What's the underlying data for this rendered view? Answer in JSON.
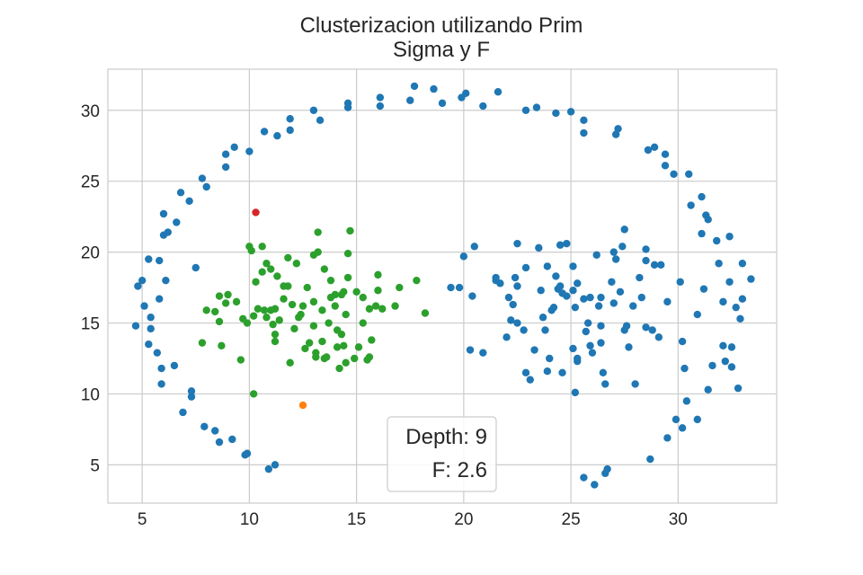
{
  "chart_data": {
    "type": "scatter",
    "title": "Clusterizacion utilizando Prim",
    "subtitle": "Sigma y F",
    "xlabel": "",
    "ylabel": "",
    "xlim": [
      3.4,
      34.6
    ],
    "ylim": [
      2.3,
      32.9
    ],
    "xticks": [
      5,
      10,
      15,
      20,
      25,
      30
    ],
    "yticks": [
      5,
      10,
      15,
      20,
      25,
      30
    ],
    "grid": true,
    "annotation": {
      "lines": [
        "Depth: 9",
        "F: 2.6"
      ],
      "placement": "bottom-center"
    },
    "series": [
      {
        "color": "#1f77b4",
        "points": [
          [
            4.7,
            14.8
          ],
          [
            4.8,
            17.6
          ],
          [
            5.0,
            18.0
          ],
          [
            5.1,
            16.2
          ],
          [
            5.3,
            19.5
          ],
          [
            5.4,
            15.4
          ],
          [
            5.4,
            14.6
          ],
          [
            5.3,
            13.5
          ],
          [
            5.7,
            12.9
          ],
          [
            5.8,
            19.4
          ],
          [
            5.8,
            16.7
          ],
          [
            5.9,
            11.8
          ],
          [
            5.9,
            10.7
          ],
          [
            6.0,
            21.2
          ],
          [
            6.0,
            22.7
          ],
          [
            6.1,
            18.0
          ],
          [
            6.2,
            21.4
          ],
          [
            6.5,
            12.0
          ],
          [
            6.6,
            22.1
          ],
          [
            6.8,
            24.2
          ],
          [
            6.9,
            8.7
          ],
          [
            7.2,
            23.6
          ],
          [
            7.3,
            9.8
          ],
          [
            7.3,
            10.2
          ],
          [
            7.5,
            18.9
          ],
          [
            7.8,
            25.2
          ],
          [
            7.9,
            7.7
          ],
          [
            8.0,
            24.6
          ],
          [
            8.4,
            7.4
          ],
          [
            8.6,
            6.6
          ],
          [
            8.9,
            26.0
          ],
          [
            8.9,
            26.9
          ],
          [
            9.2,
            6.8
          ],
          [
            9.3,
            27.4
          ],
          [
            9.8,
            5.7
          ],
          [
            9.9,
            5.8
          ],
          [
            10.0,
            27.1
          ],
          [
            10.7,
            28.5
          ],
          [
            10.9,
            4.7
          ],
          [
            11.2,
            5.0
          ],
          [
            11.3,
            28.2
          ],
          [
            11.9,
            28.6
          ],
          [
            11.9,
            29.4
          ],
          [
            13.0,
            30.0
          ],
          [
            13.3,
            29.3
          ],
          [
            14.6,
            30.5
          ],
          [
            14.6,
            30.2
          ],
          [
            16.1,
            30.9
          ],
          [
            16.1,
            30.3
          ],
          [
            17.5,
            30.7
          ],
          [
            17.7,
            31.7
          ],
          [
            18.6,
            31.5
          ],
          [
            19.0,
            30.5
          ],
          [
            19.4,
            17.5
          ],
          [
            19.8,
            17.5
          ],
          [
            19.9,
            30.9
          ],
          [
            20.0,
            19.7
          ],
          [
            20.1,
            31.2
          ],
          [
            20.3,
            13.1
          ],
          [
            20.4,
            16.9
          ],
          [
            20.5,
            20.4
          ],
          [
            20.9,
            30.3
          ],
          [
            20.9,
            12.9
          ],
          [
            21.5,
            18.0
          ],
          [
            21.6,
            31.3
          ],
          [
            21.5,
            18.2
          ],
          [
            21.7,
            17.8
          ],
          [
            22.0,
            14.0
          ],
          [
            22.1,
            16.8
          ],
          [
            22.2,
            15.2
          ],
          [
            22.3,
            16.3
          ],
          [
            22.4,
            18.2
          ],
          [
            22.5,
            15.0
          ],
          [
            22.5,
            20.6
          ],
          [
            22.5,
            17.6
          ],
          [
            22.8,
            14.5
          ],
          [
            22.9,
            18.9
          ],
          [
            22.9,
            11.5
          ],
          [
            22.9,
            30.0
          ],
          [
            23.1,
            11.0
          ],
          [
            23.3,
            13.1
          ],
          [
            23.4,
            30.2
          ],
          [
            23.5,
            20.3
          ],
          [
            23.6,
            17.3
          ],
          [
            23.7,
            15.4
          ],
          [
            23.8,
            14.5
          ],
          [
            23.9,
            19.0
          ],
          [
            23.9,
            11.6
          ],
          [
            24.0,
            12.5
          ],
          [
            24.1,
            15.9
          ],
          [
            24.2,
            16.1
          ],
          [
            24.3,
            29.8
          ],
          [
            24.3,
            18.3
          ],
          [
            24.4,
            17.4
          ],
          [
            24.5,
            20.5
          ],
          [
            24.6,
            11.5
          ],
          [
            24.5,
            17.6
          ],
          [
            24.6,
            17.1
          ],
          [
            24.8,
            16.9
          ],
          [
            24.8,
            20.6
          ],
          [
            25.0,
            29.9
          ],
          [
            25.1,
            19.0
          ],
          [
            25.1,
            17.3
          ],
          [
            25.2,
            10.1
          ],
          [
            25.2,
            16.1
          ],
          [
            25.1,
            13.2
          ],
          [
            25.3,
            17.8
          ],
          [
            25.3,
            12.3
          ],
          [
            25.3,
            12.5
          ],
          [
            25.6,
            29.3
          ],
          [
            25.6,
            28.4
          ],
          [
            25.6,
            16.7
          ],
          [
            25.6,
            4.1
          ],
          [
            25.7,
            14.4
          ],
          [
            25.8,
            15.0
          ],
          [
            25.9,
            16.8
          ],
          [
            25.9,
            13.4
          ],
          [
            26.0,
            12.9
          ],
          [
            26.1,
            3.6
          ],
          [
            26.2,
            19.8
          ],
          [
            26.3,
            16.2
          ],
          [
            26.4,
            16.8
          ],
          [
            26.4,
            13.6
          ],
          [
            26.4,
            14.8
          ],
          [
            26.5,
            11.5
          ],
          [
            26.6,
            10.7
          ],
          [
            26.6,
            4.4
          ],
          [
            26.7,
            4.7
          ],
          [
            26.9,
            17.9
          ],
          [
            27.0,
            20.0
          ],
          [
            27.0,
            16.4
          ],
          [
            27.1,
            28.3
          ],
          [
            27.1,
            19.5
          ],
          [
            27.2,
            28.7
          ],
          [
            27.3,
            17.2
          ],
          [
            27.4,
            20.4
          ],
          [
            27.5,
            21.6
          ],
          [
            27.5,
            14.5
          ],
          [
            27.6,
            14.8
          ],
          [
            27.7,
            13.3
          ],
          [
            27.9,
            16.2
          ],
          [
            28.0,
            10.7
          ],
          [
            28.2,
            18.2
          ],
          [
            28.3,
            16.8
          ],
          [
            28.5,
            14.7
          ],
          [
            28.5,
            20.2
          ],
          [
            28.5,
            19.4
          ],
          [
            28.6,
            27.2
          ],
          [
            28.7,
            5.4
          ],
          [
            28.8,
            14.5
          ],
          [
            28.9,
            27.4
          ],
          [
            28.9,
            19.1
          ],
          [
            29.1,
            14.0
          ],
          [
            29.2,
            19.1
          ],
          [
            29.4,
            26.9
          ],
          [
            29.4,
            26.1
          ],
          [
            29.5,
            6.9
          ],
          [
            29.5,
            16.5
          ],
          [
            29.8,
            25.5
          ],
          [
            29.9,
            8.2
          ],
          [
            30.1,
            17.9
          ],
          [
            30.2,
            7.6
          ],
          [
            30.2,
            13.7
          ],
          [
            30.3,
            11.8
          ],
          [
            30.4,
            9.5
          ],
          [
            30.5,
            25.5
          ],
          [
            30.6,
            23.3
          ],
          [
            30.9,
            15.6
          ],
          [
            30.9,
            8.2
          ],
          [
            31.1,
            23.9
          ],
          [
            31.1,
            21.3
          ],
          [
            31.2,
            17.4
          ],
          [
            31.3,
            22.6
          ],
          [
            31.4,
            22.3
          ],
          [
            31.4,
            10.3
          ],
          [
            31.6,
            12.0
          ],
          [
            31.8,
            20.8
          ],
          [
            31.9,
            19.2
          ],
          [
            32.1,
            13.4
          ],
          [
            32.1,
            16.5
          ],
          [
            32.2,
            12.3
          ],
          [
            32.4,
            21.1
          ],
          [
            32.4,
            17.9
          ],
          [
            32.5,
            13.3
          ],
          [
            32.8,
            10.4
          ],
          [
            32.7,
            16.1
          ],
          [
            32.9,
            15.3
          ],
          [
            33.0,
            19.2
          ],
          [
            33.0,
            16.7
          ],
          [
            33.4,
            18.1
          ],
          [
            32.5,
            11.9
          ]
        ]
      },
      {
        "color": "#2ca02c",
        "points": [
          [
            7.8,
            13.6
          ],
          [
            8.0,
            15.9
          ],
          [
            8.4,
            15.8
          ],
          [
            8.6,
            15.1
          ],
          [
            8.6,
            16.9
          ],
          [
            8.7,
            13.4
          ],
          [
            8.9,
            16.4
          ],
          [
            9.0,
            17.0
          ],
          [
            9.4,
            16.5
          ],
          [
            9.6,
            12.4
          ],
          [
            9.7,
            15.3
          ],
          [
            9.9,
            15.0
          ],
          [
            10.0,
            20.4
          ],
          [
            10.1,
            20.1
          ],
          [
            10.2,
            15.5
          ],
          [
            10.2,
            10.0
          ],
          [
            10.3,
            17.9
          ],
          [
            10.4,
            16.0
          ],
          [
            10.6,
            18.6
          ],
          [
            10.6,
            20.4
          ],
          [
            10.7,
            15.9
          ],
          [
            10.8,
            15.4
          ],
          [
            10.8,
            19.2
          ],
          [
            11.0,
            15.9
          ],
          [
            11.0,
            18.8
          ],
          [
            11.1,
            14.9
          ],
          [
            11.2,
            14.2
          ],
          [
            11.2,
            13.7
          ],
          [
            11.2,
            16.0
          ],
          [
            11.3,
            18.3
          ],
          [
            11.4,
            15.2
          ],
          [
            11.6,
            17.6
          ],
          [
            11.8,
            17.6
          ],
          [
            11.8,
            19.6
          ],
          [
            11.9,
            12.2
          ],
          [
            12.0,
            16.3
          ],
          [
            12.2,
            19.2
          ],
          [
            12.3,
            15.4
          ],
          [
            12.4,
            15.6
          ],
          [
            12.5,
            16.2
          ],
          [
            12.6,
            13.2
          ],
          [
            12.7,
            17.5
          ],
          [
            12.8,
            13.6
          ],
          [
            13.0,
            19.8
          ],
          [
            13.0,
            16.5
          ],
          [
            13.0,
            14.8
          ],
          [
            13.1,
            12.9
          ],
          [
            13.1,
            12.6
          ],
          [
            13.2,
            21.4
          ],
          [
            13.2,
            20.0
          ],
          [
            13.4,
            15.9
          ],
          [
            13.4,
            13.7
          ],
          [
            13.5,
            12.5
          ],
          [
            13.6,
            12.6
          ],
          [
            13.7,
            15.0
          ],
          [
            13.8,
            18.0
          ],
          [
            13.8,
            16.8
          ],
          [
            14.0,
            17.0
          ],
          [
            14.0,
            16.2
          ],
          [
            14.1,
            14.5
          ],
          [
            14.1,
            13.3
          ],
          [
            14.2,
            11.8
          ],
          [
            14.3,
            14.2
          ],
          [
            14.4,
            13.4
          ],
          [
            14.4,
            17.2
          ],
          [
            14.5,
            15.6
          ],
          [
            14.5,
            12.2
          ],
          [
            14.6,
            18.2
          ],
          [
            14.6,
            19.9
          ],
          [
            14.7,
            21.5
          ],
          [
            14.9,
            12.5
          ],
          [
            15.0,
            17.2
          ],
          [
            15.1,
            13.3
          ],
          [
            15.3,
            15.0
          ],
          [
            15.3,
            16.8
          ],
          [
            15.5,
            12.4
          ],
          [
            15.6,
            16.0
          ],
          [
            15.6,
            12.6
          ],
          [
            15.7,
            13.8
          ],
          [
            15.9,
            16.2
          ],
          [
            16.0,
            17.3
          ],
          [
            16.0,
            18.4
          ],
          [
            16.2,
            16.0
          ],
          [
            16.8,
            16.2
          ],
          [
            17.0,
            17.5
          ],
          [
            17.8,
            18.0
          ],
          [
            18.2,
            15.7
          ],
          [
            14.3,
            17.0
          ],
          [
            13.5,
            18.8
          ],
          [
            12.1,
            14.6
          ],
          [
            11.6,
            16.7
          ]
        ]
      },
      {
        "color": "#d62728",
        "points": [
          [
            10.3,
            22.8
          ]
        ]
      },
      {
        "color": "#ff7f0e",
        "points": [
          [
            12.5,
            9.2
          ]
        ]
      }
    ]
  }
}
